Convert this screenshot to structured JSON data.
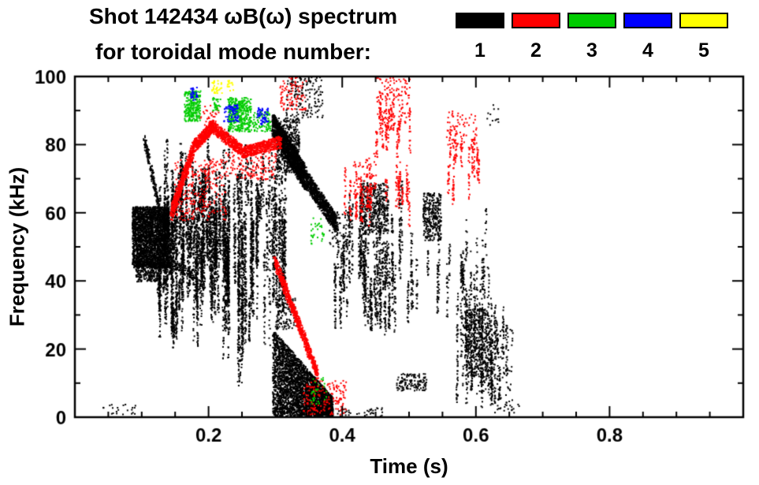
{
  "chart_data": {
    "type": "scatter",
    "title": "Shot 142434 ωB(ω) spectrum",
    "subtitle": "for toroidal mode number:",
    "xlabel": "Time (s)",
    "ylabel": "Frequency (kHz)",
    "xlim": [
      0,
      1
    ],
    "ylim": [
      0,
      100
    ],
    "grid": false,
    "xticks": {
      "values": [
        0.2,
        0.4,
        0.6,
        0.8
      ],
      "labels": [
        "0.2",
        "0.4",
        "0.6",
        "0.8"
      ],
      "minor_step": 0.05
    },
    "yticks": {
      "values": [
        0,
        20,
        40,
        60,
        80,
        100
      ],
      "labels": [
        "0",
        "20",
        "40",
        "60",
        "80",
        "100"
      ],
      "minor_step": 10
    },
    "legend": {
      "position": "top-right",
      "items": [
        {
          "label": "1",
          "color": "#000000"
        },
        {
          "label": "2",
          "color": "#ff0000"
        },
        {
          "label": "3",
          "color": "#00cc00"
        },
        {
          "label": "4",
          "color": "#0000ff"
        },
        {
          "label": "5",
          "color": "#ffff00"
        }
      ]
    },
    "series": [
      {
        "name": "1",
        "color": "#000000",
        "clusters": [
          {
            "kind": "blob",
            "t": [
              0.085,
              0.14
            ],
            "f": [
              44,
              62
            ],
            "n": 2600
          },
          {
            "kind": "blob",
            "t": [
              0.09,
              0.125
            ],
            "f": [
              40,
              46
            ],
            "n": 250
          },
          {
            "kind": "band",
            "p0": [
              0.103,
              82
            ],
            "p1": [
              0.13,
              57
            ],
            "w": 2.5,
            "n": 220
          },
          {
            "kind": "band",
            "p0": [
              0.13,
              47
            ],
            "p1": [
              0.175,
              42
            ],
            "w": 3,
            "n": 150
          },
          {
            "kind": "vstreaks",
            "t": [
              0.12,
              0.315
            ],
            "count": 95,
            "fb": [
              20,
              48
            ],
            "fh": [
              8,
              40
            ],
            "pts": 40
          },
          {
            "kind": "vstreaks",
            "t": [
              0.13,
              0.23
            ],
            "count": 55,
            "fb": [
              35,
              55
            ],
            "fh": [
              10,
              28
            ],
            "pts": 35
          },
          {
            "kind": "vstreaks",
            "t": [
              0.155,
              0.3
            ],
            "count": 30,
            "fb": [
              55,
              65
            ],
            "fh": [
              5,
              18
            ],
            "pts": 25
          },
          {
            "kind": "vstreaks",
            "t": [
              0.215,
              0.26
            ],
            "count": 8,
            "fb": [
              8,
              18
            ],
            "fh": [
              25,
              55
            ],
            "pts": 45
          },
          {
            "kind": "vstreaks",
            "t": [
              0.295,
              0.315
            ],
            "count": 10,
            "fb": [
              28,
              40
            ],
            "fh": [
              25,
              45
            ],
            "pts": 35
          },
          {
            "kind": "band",
            "p0": [
              0.295,
              86
            ],
            "p1": [
              0.345,
              70
            ],
            "w": 7,
            "n": 1400
          },
          {
            "kind": "band",
            "p0": [
              0.345,
              70
            ],
            "p1": [
              0.39,
              57
            ],
            "w": 5,
            "n": 800
          },
          {
            "kind": "blob",
            "t": [
              0.3,
              0.335
            ],
            "f": [
              72,
              88
            ],
            "n": 500
          },
          {
            "kind": "speckle",
            "t": [
              0.315,
              0.37
            ],
            "f": [
              88,
              100
            ],
            "n": 160
          },
          {
            "kind": "wedge",
            "t": [
              0.295,
              0.385
            ],
            "ftop": [
              26,
              6
            ],
            "fbot": 0.5,
            "n": 3200
          },
          {
            "kind": "speckle",
            "t": [
              0.3,
              0.33
            ],
            "f": [
              26,
              36
            ],
            "n": 120
          },
          {
            "kind": "vstreaks",
            "t": [
              0.383,
              0.5
            ],
            "count": 38,
            "fb": [
              24,
              46
            ],
            "fh": [
              8,
              30
            ],
            "pts": 28
          },
          {
            "kind": "blob",
            "t": [
              0.425,
              0.468
            ],
            "f": [
              54,
              69
            ],
            "n": 480
          },
          {
            "kind": "vstreaks",
            "t": [
              0.43,
              0.475
            ],
            "count": 12,
            "fb": [
              25,
              40
            ],
            "fh": [
              8,
              20
            ],
            "pts": 22
          },
          {
            "kind": "blob",
            "t": [
              0.52,
              0.547
            ],
            "f": [
              52,
              66
            ],
            "n": 320
          },
          {
            "kind": "vstreaks",
            "t": [
              0.5,
              0.56
            ],
            "count": 10,
            "fb": [
              25,
              45
            ],
            "fh": [
              8,
              20
            ],
            "pts": 18
          },
          {
            "kind": "vstreaks",
            "t": [
              0.565,
              0.655
            ],
            "count": 34,
            "fb": [
              3,
              22
            ],
            "fh": [
              8,
              35
            ],
            "pts": 26
          },
          {
            "kind": "blob",
            "t": [
              0.585,
              0.617
            ],
            "f": [
              12,
              32
            ],
            "n": 380
          },
          {
            "kind": "speckle",
            "t": [
              0.6,
              0.655
            ],
            "f": [
              3,
              26
            ],
            "n": 140
          },
          {
            "kind": "vstreaks",
            "t": [
              0.57,
              0.62
            ],
            "count": 8,
            "fb": [
              35,
              48
            ],
            "fh": [
              6,
              14
            ],
            "pts": 15
          },
          {
            "kind": "speckle",
            "t": [
              0.04,
              0.09
            ],
            "f": [
              1,
              4
            ],
            "n": 22
          },
          {
            "kind": "speckle",
            "t": [
              0.3,
              0.46
            ],
            "f": [
              0.5,
              3
            ],
            "n": 70
          },
          {
            "kind": "blob",
            "t": [
              0.48,
              0.525
            ],
            "f": [
              8,
              13
            ],
            "n": 130
          },
          {
            "kind": "speckle",
            "t": [
              0.625,
              0.665
            ],
            "f": [
              1,
              4
            ],
            "n": 18
          },
          {
            "kind": "speckle",
            "t": [
              0.38,
              0.41
            ],
            "f": [
              50,
              62
            ],
            "n": 60
          },
          {
            "kind": "speckle",
            "t": [
              0.445,
              0.47
            ],
            "f": [
              42,
              52
            ],
            "n": 50
          },
          {
            "kind": "speckle",
            "t": [
              0.615,
              0.635
            ],
            "f": [
              86,
              92
            ],
            "n": 12
          }
        ]
      },
      {
        "name": "2",
        "color": "#ff0000",
        "clusters": [
          {
            "kind": "band",
            "p0": [
              0.143,
              60
            ],
            "p1": [
              0.178,
              80
            ],
            "w": 4,
            "n": 550
          },
          {
            "kind": "band",
            "p0": [
              0.178,
              80
            ],
            "p1": [
              0.208,
              86
            ],
            "w": 3.5,
            "n": 420
          },
          {
            "kind": "band",
            "p0": [
              0.208,
              85
            ],
            "p1": [
              0.252,
              78
            ],
            "w": 3.5,
            "n": 430
          },
          {
            "kind": "band",
            "p0": [
              0.252,
              78
            ],
            "p1": [
              0.307,
              81
            ],
            "w": 3.5,
            "n": 460
          },
          {
            "kind": "speckle",
            "t": [
              0.148,
              0.225
            ],
            "f": [
              58,
              76
            ],
            "n": 260
          },
          {
            "kind": "speckle",
            "t": [
              0.225,
              0.3
            ],
            "f": [
              70,
              78
            ],
            "n": 140
          },
          {
            "kind": "speckle",
            "t": [
              0.185,
              0.215
            ],
            "f": [
              85,
              92
            ],
            "n": 40
          },
          {
            "kind": "band",
            "p0": [
              0.298,
              46
            ],
            "p1": [
              0.362,
              13
            ],
            "w": 3.5,
            "n": 800
          },
          {
            "kind": "speckle",
            "t": [
              0.34,
              0.405
            ],
            "f": [
              1,
              11
            ],
            "n": 160
          },
          {
            "kind": "vstreaks",
            "t": [
              0.402,
              0.443
            ],
            "count": 9,
            "fb": [
              55,
              62
            ],
            "fh": [
              8,
              18
            ],
            "pts": 20
          },
          {
            "kind": "vstreaks",
            "t": [
              0.445,
              0.502
            ],
            "count": 12,
            "fb": [
              76,
              88
            ],
            "fh": [
              6,
              14
            ],
            "pts": 18
          },
          {
            "kind": "speckle",
            "t": [
              0.45,
              0.5
            ],
            "f": [
              86,
              100
            ],
            "n": 120
          },
          {
            "kind": "vstreaks",
            "t": [
              0.46,
              0.505
            ],
            "count": 9,
            "fb": [
              55,
              66
            ],
            "fh": [
              6,
              14
            ],
            "pts": 16
          },
          {
            "kind": "vstreaks",
            "t": [
              0.548,
              0.607
            ],
            "count": 11,
            "fb": [
              62,
              76
            ],
            "fh": [
              6,
              16
            ],
            "pts": 18
          },
          {
            "kind": "speckle",
            "t": [
              0.555,
              0.6
            ],
            "f": [
              78,
              90
            ],
            "n": 70
          },
          {
            "kind": "speckle",
            "t": [
              0.305,
              0.345
            ],
            "f": [
              90,
              100
            ],
            "n": 90
          },
          {
            "kind": "speckle",
            "t": [
              0.415,
              0.45
            ],
            "f": [
              62,
              78
            ],
            "n": 80
          }
        ]
      },
      {
        "name": "3",
        "color": "#00cc00",
        "clusters": [
          {
            "kind": "blob",
            "t": [
              0.163,
              0.187
            ],
            "f": [
              87,
              96
            ],
            "n": 260
          },
          {
            "kind": "blob",
            "t": [
              0.228,
              0.263
            ],
            "f": [
              84,
              94
            ],
            "n": 380
          },
          {
            "kind": "speckle",
            "t": [
              0.265,
              0.292
            ],
            "f": [
              84,
              90
            ],
            "n": 90
          },
          {
            "kind": "speckle",
            "t": [
              0.205,
              0.217
            ],
            "f": [
              90,
              94
            ],
            "n": 35
          },
          {
            "kind": "speckle",
            "t": [
              0.352,
              0.372
            ],
            "f": [
              51,
              59
            ],
            "n": 30
          },
          {
            "kind": "speckle",
            "t": [
              0.352,
              0.375
            ],
            "f": [
              4,
              12
            ],
            "n": 30
          }
        ]
      },
      {
        "name": "4",
        "color": "#0000ff",
        "clusters": [
          {
            "kind": "speckle",
            "t": [
              0.222,
              0.244
            ],
            "f": [
              87,
              92
            ],
            "n": 70
          },
          {
            "kind": "speckle",
            "t": [
              0.272,
              0.289
            ],
            "f": [
              86,
              91
            ],
            "n": 55
          },
          {
            "kind": "speckle",
            "t": [
              0.171,
              0.183
            ],
            "f": [
              93,
              97
            ],
            "n": 28
          }
        ]
      },
      {
        "name": "5",
        "color": "#ffff00",
        "clusters": [
          {
            "kind": "speckle",
            "t": [
              0.204,
              0.219
            ],
            "f": [
              95,
              99
            ],
            "n": 32
          },
          {
            "kind": "speckle",
            "t": [
              0.227,
              0.237
            ],
            "f": [
              96,
              99
            ],
            "n": 14
          }
        ]
      }
    ]
  }
}
